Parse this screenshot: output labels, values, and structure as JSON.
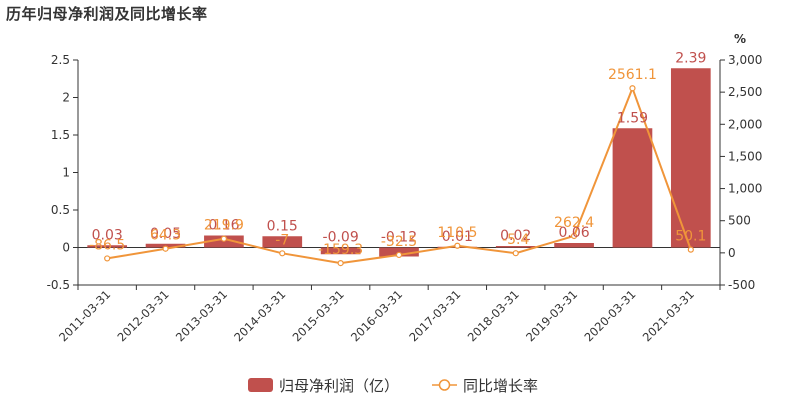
{
  "title": "历年归母净利润及同比增长率",
  "chart_data": {
    "type": "bar",
    "categories": [
      "2011-03-31",
      "2012-03-31",
      "2013-03-31",
      "2014-03-31",
      "2015-03-31",
      "2016-03-31",
      "2017-03-31",
      "2018-03-31",
      "2019-03-31",
      "2020-03-31",
      "2021-03-31"
    ],
    "series": [
      {
        "name": "归母净利润（亿）",
        "type": "bar",
        "axis": "left",
        "color": "#c0504d",
        "values": [
          0.03,
          0.05,
          0.16,
          0.15,
          -0.09,
          -0.12,
          0.01,
          0.02,
          0.06,
          1.59,
          2.39
        ],
        "labels": [
          "0.03",
          "0.05",
          "0.16",
          "0.15",
          "-0.09",
          "-0.12",
          "0.01",
          "0.02",
          "0.06",
          "1.59",
          "2.39"
        ]
      },
      {
        "name": "同比增长率",
        "type": "line",
        "axis": "right",
        "color": "#f0953a",
        "values": [
          -86.5,
          64.3,
          219.9,
          -7,
          -159.3,
          -32.5,
          110.5,
          -5.4,
          262.4,
          2561.1,
          50.1
        ],
        "labels": [
          "-86.5",
          "64.3",
          "219.9",
          "-7",
          "-159.3",
          "-32.5",
          "110.5",
          "-5.4",
          "262.4",
          "2561.1",
          "50.1"
        ]
      }
    ],
    "y_left": {
      "ylim": [
        -0.5,
        2.5
      ],
      "ticks": [
        "-0.5",
        "0",
        "0.5",
        "1",
        "1.5",
        "2",
        "2.5"
      ]
    },
    "y_right": {
      "ylim": [
        -500,
        3000
      ],
      "unit": "%",
      "ticks": [
        "-500",
        "0",
        "500",
        "1,000",
        "1,500",
        "2,000",
        "2,500",
        "3,000"
      ]
    },
    "legend_position": "bottom"
  }
}
